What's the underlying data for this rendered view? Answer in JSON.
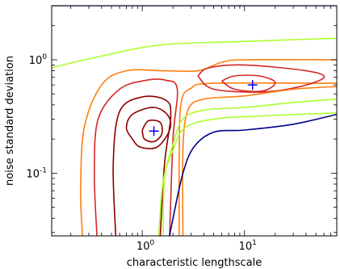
{
  "chart_data": {
    "type": "contour",
    "title": "",
    "xlabel": "characteristic lengthscale",
    "ylabel": "noise standard deviation",
    "xscale": "log",
    "yscale": "log",
    "xlim": [
      0.13,
      80
    ],
    "ylim": [
      0.028,
      3.0
    ],
    "x_ticks": [
      {
        "base": "10",
        "exp": "0",
        "value": 1
      },
      {
        "base": "10",
        "exp": "1",
        "value": 10
      }
    ],
    "y_ticks": [
      {
        "base": "10",
        "exp": "-1",
        "value": 0.1
      },
      {
        "base": "10",
        "exp": "0",
        "value": 1
      }
    ],
    "grid": false,
    "legend": "none",
    "contours": [
      {
        "name": "",
        "color": "#00008b",
        "points": [
          [
            0.13,
            3.0
          ],
          [
            0.35,
            3.0
          ],
          [
            80,
            3.0
          ]
        ]
      },
      {
        "name": "",
        "color": "#adff2f",
        "points": [
          [
            0.13,
            0.85
          ],
          [
            0.35,
            1.05
          ],
          [
            1.5,
            1.35
          ],
          [
            10,
            1.45
          ],
          [
            80,
            1.55
          ]
        ]
      },
      {
        "name": "",
        "color": "#ff7f0e",
        "points": [
          [
            0.26,
            0.028
          ],
          [
            0.25,
            0.07
          ],
          [
            0.27,
            0.25
          ],
          [
            0.4,
            0.6
          ],
          [
            0.7,
            0.8
          ],
          [
            1.6,
            0.8
          ],
          [
            3.5,
            0.8
          ],
          [
            6,
            0.95
          ],
          [
            10,
            1.0
          ],
          [
            80,
            1.0
          ]
        ]
      },
      {
        "name": "",
        "color": "#ff7f0e",
        "points": [
          [
            2.3,
            0.028
          ],
          [
            2.3,
            0.14
          ],
          [
            2.4,
            0.42
          ],
          [
            3,
            0.56
          ],
          [
            5,
            0.62
          ],
          [
            80,
            0.62
          ]
        ]
      },
      {
        "name": "",
        "color": "#d62728",
        "points": [
          [
            0.36,
            0.028
          ],
          [
            0.34,
            0.1
          ],
          [
            0.37,
            0.3
          ],
          [
            0.6,
            0.55
          ],
          [
            1.1,
            0.66
          ],
          [
            1.7,
            0.66
          ],
          [
            2.2,
            0.55
          ],
          [
            2.0,
            0.2
          ],
          [
            1.85,
            0.028
          ]
        ]
      },
      {
        "name": "",
        "color": "#8b0000",
        "points": [
          [
            0.55,
            0.028
          ],
          [
            0.52,
            0.12
          ],
          [
            0.6,
            0.35
          ],
          [
            1.0,
            0.47
          ],
          [
            1.7,
            0.44
          ],
          [
            1.9,
            0.32
          ],
          [
            1.65,
            0.12
          ],
          [
            1.5,
            0.028
          ]
        ]
      },
      {
        "name": "",
        "color": "#8b0000",
        "points": [
          [
            0.8,
            0.2
          ],
          [
            0.7,
            0.25
          ],
          [
            0.8,
            0.33
          ],
          [
            1.3,
            0.38
          ],
          [
            1.8,
            0.32
          ],
          [
            1.85,
            0.24
          ],
          [
            1.4,
            0.17
          ],
          [
            0.95,
            0.17
          ],
          [
            0.8,
            0.2
          ]
        ]
      },
      {
        "name": "",
        "color": "#8b0000",
        "points": [
          [
            1.0,
            0.24
          ],
          [
            1.15,
            0.29
          ],
          [
            1.5,
            0.28
          ],
          [
            1.55,
            0.22
          ],
          [
            1.3,
            0.19
          ],
          [
            1.05,
            0.2
          ],
          [
            1.0,
            0.24
          ]
        ]
      },
      {
        "name": "",
        "color": "#d62728",
        "points": [
          [
            3.5,
            0.72
          ],
          [
            4.5,
            0.85
          ],
          [
            10,
            0.9
          ],
          [
            40,
            0.8
          ],
          [
            60,
            0.7
          ],
          [
            35,
            0.58
          ],
          [
            15,
            0.52
          ],
          [
            5,
            0.55
          ],
          [
            3.5,
            0.72
          ]
        ]
      },
      {
        "name": "",
        "color": "#d62728",
        "points": [
          [
            6,
            0.65
          ],
          [
            8,
            0.72
          ],
          [
            14,
            0.72
          ],
          [
            20,
            0.63
          ],
          [
            15,
            0.53
          ],
          [
            8,
            0.55
          ],
          [
            6,
            0.65
          ]
        ]
      },
      {
        "name": "",
        "color": "#ff7f0e",
        "points": [
          [
            2.5,
            0.028
          ],
          [
            2.5,
            0.16
          ],
          [
            2.8,
            0.36
          ],
          [
            4,
            0.45
          ],
          [
            10,
            0.48
          ],
          [
            30,
            0.55
          ],
          [
            80,
            0.58
          ]
        ]
      },
      {
        "name": "",
        "color": "#adff2f",
        "points": [
          [
            1.6,
            0.028
          ],
          [
            1.65,
            0.09
          ],
          [
            2.0,
            0.18
          ],
          [
            2.5,
            0.3
          ],
          [
            4,
            0.36
          ],
          [
            10,
            0.38
          ],
          [
            30,
            0.42
          ],
          [
            80,
            0.45
          ]
        ]
      },
      {
        "name": "",
        "color": "#adff2f",
        "points": [
          [
            1.45,
            0.028
          ],
          [
            1.6,
            0.085
          ],
          [
            2.0,
            0.16
          ],
          [
            2.6,
            0.25
          ],
          [
            5,
            0.3
          ],
          [
            15,
            0.32
          ],
          [
            80,
            0.34
          ]
        ]
      },
      {
        "name": "",
        "color": "#00008b",
        "points": [
          [
            1.85,
            0.028
          ],
          [
            2.0,
            0.04
          ],
          [
            2.5,
            0.1
          ],
          [
            3.2,
            0.17
          ],
          [
            5,
            0.23
          ],
          [
            10,
            0.24
          ],
          [
            30,
            0.27
          ],
          [
            80,
            0.33
          ]
        ]
      }
    ],
    "markers": [
      {
        "x": 1.3,
        "y": 0.235,
        "symbol": "+",
        "color": "#0000ff"
      },
      {
        "x": 12,
        "y": 0.6,
        "symbol": "+",
        "color": "#0000ff"
      }
    ]
  }
}
